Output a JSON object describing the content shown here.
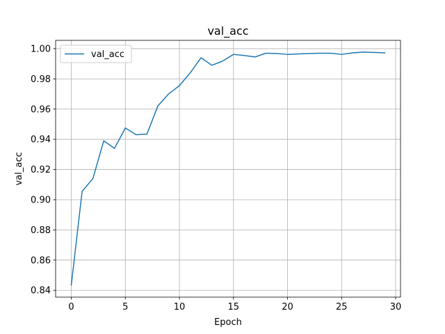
{
  "chart_data": {
    "type": "line",
    "title": "val_acc",
    "xlabel": "Epoch",
    "ylabel": "val_acc",
    "xlim": [
      -1.45,
      30.45
    ],
    "ylim": [
      0.8355,
      1.0055
    ],
    "xticks": [
      0,
      5,
      10,
      15,
      20,
      25,
      30
    ],
    "yticks": [
      0.84,
      0.86,
      0.88,
      0.9,
      0.92,
      0.94,
      0.96,
      0.98,
      1.0
    ],
    "xtick_labels": [
      "0",
      "5",
      "10",
      "15",
      "20",
      "25",
      "30"
    ],
    "ytick_labels": [
      "0.84",
      "0.86",
      "0.88",
      "0.90",
      "0.92",
      "0.94",
      "0.96",
      "0.98",
      "1.00"
    ],
    "grid": true,
    "legend_position": "upper left",
    "series": [
      {
        "name": "val_acc",
        "color": "#1f77b4",
        "x": [
          0,
          1,
          2,
          3,
          4,
          5,
          6,
          7,
          8,
          9,
          10,
          11,
          12,
          13,
          14,
          15,
          16,
          17,
          18,
          19,
          20,
          21,
          22,
          23,
          24,
          25,
          26,
          27,
          28,
          29
        ],
        "y": [
          0.8435,
          0.9055,
          0.914,
          0.939,
          0.934,
          0.9475,
          0.943,
          0.9435,
          0.962,
          0.97,
          0.9755,
          0.984,
          0.994,
          0.989,
          0.9918,
          0.9962,
          0.9955,
          0.9945,
          0.997,
          0.9968,
          0.9962,
          0.9965,
          0.9968,
          0.997,
          0.997,
          0.9962,
          0.9972,
          0.9977,
          0.9975,
          0.9972
        ]
      }
    ]
  }
}
